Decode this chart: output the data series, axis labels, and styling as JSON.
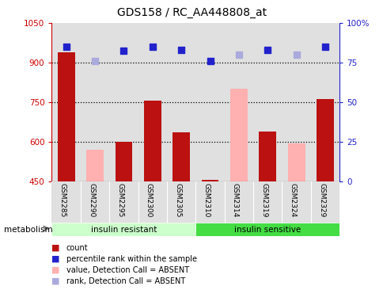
{
  "title": "GDS158 / RC_AA448808_at",
  "categories": [
    "GSM2285",
    "GSM2290",
    "GSM2295",
    "GSM2300",
    "GSM2305",
    "GSM2310",
    "GSM2314",
    "GSM2319",
    "GSM2324",
    "GSM2329"
  ],
  "ylim_left": [
    450,
    1050
  ],
  "ylim_right": [
    0,
    100
  ],
  "yticks_left": [
    450,
    600,
    750,
    900,
    1050
  ],
  "yticks_right": [
    0,
    25,
    50,
    75,
    100
  ],
  "red_bars": [
    940,
    null,
    600,
    755,
    635,
    455,
    null,
    640,
    null,
    762
  ],
  "pink_bars": [
    null,
    570,
    null,
    null,
    null,
    null,
    800,
    null,
    595,
    null
  ],
  "blue_squares": [
    960,
    null,
    945,
    960,
    950,
    905,
    null,
    950,
    null,
    960
  ],
  "light_blue_squares": [
    null,
    905,
    null,
    null,
    null,
    null,
    930,
    null,
    930,
    null
  ],
  "bar_width": 0.6,
  "red_color": "#BB1111",
  "pink_color": "#FFB0B0",
  "blue_color": "#2222CC",
  "light_blue_color": "#AAAADD",
  "group1_bg": "#CCFFCC",
  "group2_bg": "#44DD44",
  "col_bg": "#E0E0E0",
  "left_axis_color": "#CC0000",
  "right_axis_color": "#2222CC",
  "group_labels": [
    "insulin resistant",
    "insulin sensitive"
  ],
  "metabolism_label": "metabolism",
  "legend_items": [
    {
      "color": "#BB1111",
      "label": "count"
    },
    {
      "color": "#2222CC",
      "label": "percentile rank within the sample"
    },
    {
      "color": "#FFB0B0",
      "label": "value, Detection Call = ABSENT"
    },
    {
      "color": "#AAAADD",
      "label": "rank, Detection Call = ABSENT"
    }
  ]
}
